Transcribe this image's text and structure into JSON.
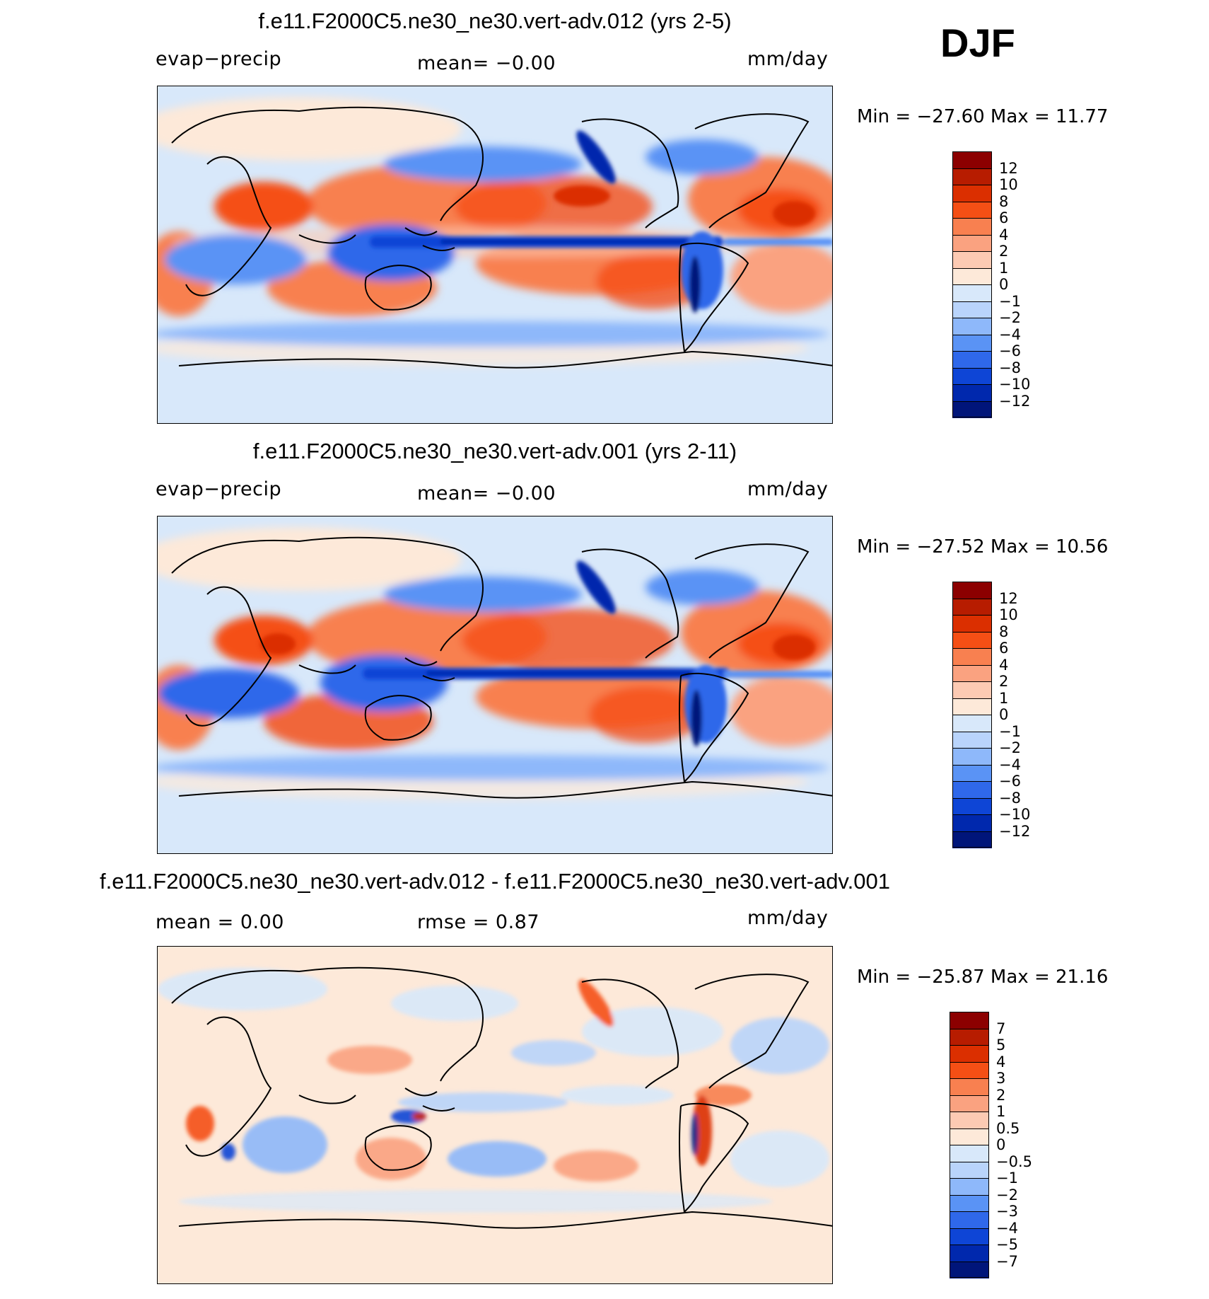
{
  "season": "DJF",
  "panels": [
    {
      "title": "f.e11.F2000C5.ne30_ne30.vert-adv.012 (yrs 2-5)",
      "left_label": "evap−precip",
      "mid_label": "mean=   −0.00",
      "right_label": "mm/day",
      "minmax": "Min  =  −27.60  Max  =     11.77"
    },
    {
      "title": "f.e11.F2000C5.ne30_ne30.vert-adv.001 (yrs 2-11)",
      "left_label": "evap−precip",
      "mid_label": "mean=   −0.00",
      "right_label": "mm/day",
      "minmax": "Min  =  −27.52  Max  =     10.56"
    },
    {
      "title": "f.e11.F2000C5.ne30_ne30.vert-adv.012 - f.e11.F2000C5.ne30_ne30.vert-adv.001",
      "left_label": "mean  =      0.00",
      "mid_label": "rmse  =      0.87",
      "right_label": "mm/day",
      "minmax": "Min  =  −25.87  Max  =    21.16"
    }
  ],
  "chart_data": [
    {
      "type": "heatmap",
      "title": "f.e11.F2000C5.ne30_ne30.vert-adv.012 (yrs 2-5)",
      "variable": "evap−precip",
      "units": "mm/day",
      "mean": -0.0,
      "min": -27.6,
      "max": 11.77,
      "colorbar_levels": [
        "12",
        "10",
        "8",
        "6",
        "4",
        "2",
        "1",
        "0",
        "−1",
        "−2",
        "−4",
        "−6",
        "−8",
        "−10",
        "−12"
      ],
      "colorbar_colors": [
        "#8c0000",
        "#b71c00",
        "#db2f00",
        "#f54f15",
        "#f88050",
        "#faa280",
        "#fccab3",
        "#fde9d9",
        "#d8e8fa",
        "#b9d4fb",
        "#8eb8fa",
        "#5a93f5",
        "#2f68ea",
        "#0e45d6",
        "#0028ad",
        "#00157a"
      ]
    },
    {
      "type": "heatmap",
      "title": "f.e11.F2000C5.ne30_ne30.vert-adv.001 (yrs 2-11)",
      "variable": "evap−precip",
      "units": "mm/day",
      "mean": -0.0,
      "min": -27.52,
      "max": 10.56,
      "colorbar_levels": [
        "12",
        "10",
        "8",
        "6",
        "4",
        "2",
        "1",
        "0",
        "−1",
        "−2",
        "−4",
        "−6",
        "−8",
        "−10",
        "−12"
      ],
      "colorbar_colors": [
        "#8c0000",
        "#b71c00",
        "#db2f00",
        "#f54f15",
        "#f88050",
        "#faa280",
        "#fccab3",
        "#fde9d9",
        "#d8e8fa",
        "#b9d4fb",
        "#8eb8fa",
        "#5a93f5",
        "#2f68ea",
        "#0e45d6",
        "#0028ad",
        "#00157a"
      ]
    },
    {
      "type": "heatmap",
      "title": "f.e11.F2000C5.ne30_ne30.vert-adv.012 - f.e11.F2000C5.ne30_ne30.vert-adv.001",
      "units": "mm/day",
      "mean": 0.0,
      "rmse": 0.87,
      "min": -25.87,
      "max": 21.16,
      "colorbar_levels": [
        "7",
        "5",
        "4",
        "3",
        "2",
        "1",
        "0.5",
        "0",
        "−0.5",
        "−1",
        "−2",
        "−3",
        "−4",
        "−5",
        "−7"
      ],
      "colorbar_colors": [
        "#8c0000",
        "#b71c00",
        "#db2f00",
        "#f54f15",
        "#f88050",
        "#faa280",
        "#fccab3",
        "#fde9d9",
        "#d8e8fa",
        "#b9d4fb",
        "#8eb8fa",
        "#5a93f5",
        "#2f68ea",
        "#0e45d6",
        "#0028ad",
        "#00157a"
      ]
    }
  ]
}
